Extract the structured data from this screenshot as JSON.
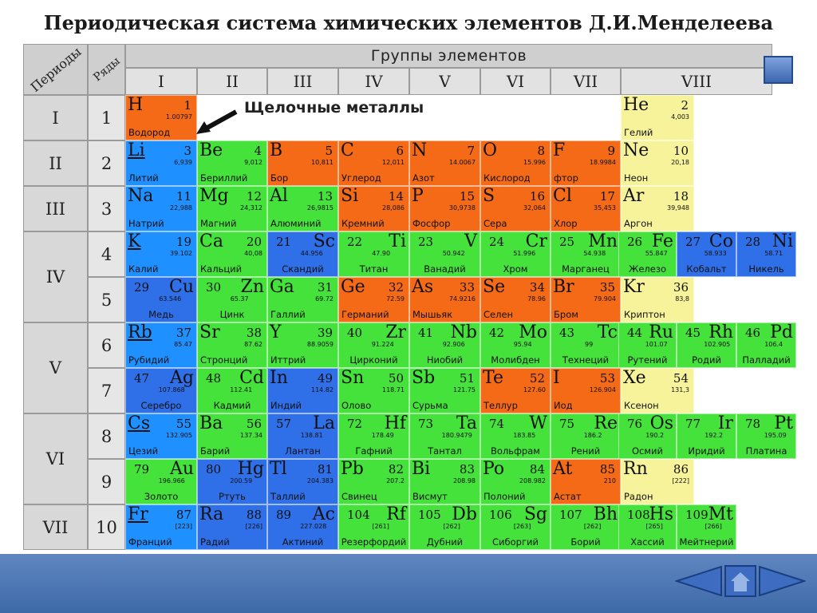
{
  "title": "Периодическая система химических элементов Д.И.Менделеева",
  "headers": {
    "periods": "Периоды",
    "rows": "Ряды",
    "groups": "Группы элементов"
  },
  "groups": [
    "I",
    "II",
    "III",
    "IV",
    "V",
    "VI",
    "VII",
    "VIII"
  ],
  "periods": [
    "I",
    "II",
    "III",
    "IV",
    "V",
    "VI",
    "VII"
  ],
  "rows": [
    "1",
    "2",
    "3",
    "4",
    "5",
    "6",
    "7",
    "8",
    "9",
    "10"
  ],
  "annotation": "Щелочные металлы",
  "colors": {
    "s": "#f26a1b",
    "p": "#f26a1b",
    "s_blue": "#1e90ff",
    "d_blue": "#2f6fe8",
    "green": "#44e23a",
    "yellow": "#f7f39a",
    "red": "#f46a17"
  },
  "elements": [
    {
      "id": "H",
      "symbol": "H",
      "number": "1",
      "mass": "1.00797",
      "name": "Водород",
      "row": 1,
      "col": 1,
      "color": "#f46a17",
      "layout": "sym-left"
    },
    {
      "id": "He",
      "symbol": "He",
      "number": "2",
      "mass": "4,003",
      "name": "Гелий",
      "row": 1,
      "col": 8,
      "color": "#f7f39a",
      "layout": "sym-left"
    },
    {
      "id": "Li",
      "symbol": "Li",
      "number": "3",
      "mass": "6,939",
      "name": "Литий",
      "row": 2,
      "col": 1,
      "color": "#1e90ff",
      "layout": "sym-left",
      "underline": true
    },
    {
      "id": "Be",
      "symbol": "Be",
      "number": "4",
      "mass": "9,012",
      "name": "Бериллий",
      "row": 2,
      "col": 2,
      "color": "#44e23a",
      "layout": "sym-left"
    },
    {
      "id": "B",
      "symbol": "B",
      "number": "5",
      "mass": "10,811",
      "name": "Бор",
      "row": 2,
      "col": 3,
      "color": "#f46a17",
      "layout": "sym-left"
    },
    {
      "id": "C",
      "symbol": "C",
      "number": "6",
      "mass": "12,011",
      "name": "Углерод",
      "row": 2,
      "col": 4,
      "color": "#f46a17",
      "layout": "sym-left"
    },
    {
      "id": "N",
      "symbol": "N",
      "number": "7",
      "mass": "14.0067",
      "name": "Азот",
      "row": 2,
      "col": 5,
      "color": "#f46a17",
      "layout": "sym-left"
    },
    {
      "id": "O",
      "symbol": "O",
      "number": "8",
      "mass": "15.996",
      "name": "Кислород",
      "row": 2,
      "col": 6,
      "color": "#f46a17",
      "layout": "sym-left"
    },
    {
      "id": "F",
      "symbol": "F",
      "number": "9",
      "mass": "18.9984",
      "name": "фтор",
      "row": 2,
      "col": 7,
      "color": "#f46a17",
      "layout": "sym-left"
    },
    {
      "id": "Ne",
      "symbol": "Ne",
      "number": "10",
      "mass": "20,18",
      "name": "Неон",
      "row": 2,
      "col": 8,
      "color": "#f7f39a",
      "layout": "sym-left"
    },
    {
      "id": "Na",
      "symbol": "Na",
      "number": "11",
      "mass": "22,988",
      "name": "Натрий",
      "row": 3,
      "col": 1,
      "color": "#1e90ff",
      "layout": "sym-left"
    },
    {
      "id": "Mg",
      "symbol": "Mg",
      "number": "12",
      "mass": "24,312",
      "name": "Магний",
      "row": 3,
      "col": 2,
      "color": "#44e23a",
      "layout": "sym-left"
    },
    {
      "id": "Al",
      "symbol": "Al",
      "number": "13",
      "mass": "26,9815",
      "name": "Алюминий",
      "row": 3,
      "col": 3,
      "color": "#44e23a",
      "layout": "sym-left"
    },
    {
      "id": "Si",
      "symbol": "Si",
      "number": "14",
      "mass": "28,086",
      "name": "Кремний",
      "row": 3,
      "col": 4,
      "color": "#f46a17",
      "layout": "sym-left"
    },
    {
      "id": "P",
      "symbol": "P",
      "number": "15",
      "mass": "30,9738",
      "name": "Фосфор",
      "row": 3,
      "col": 5,
      "color": "#f46a17",
      "layout": "sym-left"
    },
    {
      "id": "S",
      "symbol": "S",
      "number": "16",
      "mass": "32,064",
      "name": "Сера",
      "row": 3,
      "col": 6,
      "color": "#f46a17",
      "layout": "sym-left"
    },
    {
      "id": "Cl",
      "symbol": "Cl",
      "number": "17",
      "mass": "35,453",
      "name": "Хлор",
      "row": 3,
      "col": 7,
      "color": "#f46a17",
      "layout": "sym-left"
    },
    {
      "id": "Ar",
      "symbol": "Ar",
      "number": "18",
      "mass": "39,948",
      "name": "Аргон",
      "row": 3,
      "col": 8,
      "color": "#f7f39a",
      "layout": "sym-left"
    },
    {
      "id": "K",
      "symbol": "K",
      "number": "19",
      "mass": "39.102",
      "name": "Калий",
      "row": 4,
      "col": 1,
      "color": "#1e90ff",
      "layout": "sym-left",
      "underline": true
    },
    {
      "id": "Ca",
      "symbol": "Ca",
      "number": "20",
      "mass": "40,08",
      "name": "Кальций",
      "row": 4,
      "col": 2,
      "color": "#44e23a",
      "layout": "sym-left"
    },
    {
      "id": "Sc",
      "symbol": "Sc",
      "number": "21",
      "mass": "44.956",
      "name": "Скандий",
      "row": 4,
      "col": 3,
      "color": "#2f6fe8",
      "layout": "sym-right"
    },
    {
      "id": "Ti",
      "symbol": "Ti",
      "number": "22",
      "mass": "47.90",
      "name": "Титан",
      "row": 4,
      "col": 4,
      "color": "#44e23a",
      "layout": "sym-right"
    },
    {
      "id": "V",
      "symbol": "V",
      "number": "23",
      "mass": "50.942",
      "name": "Ванадий",
      "row": 4,
      "col": 5,
      "color": "#44e23a",
      "layout": "sym-right"
    },
    {
      "id": "Cr",
      "symbol": "Cr",
      "number": "24",
      "mass": "51.996",
      "name": "Хром",
      "row": 4,
      "col": 6,
      "color": "#44e23a",
      "layout": "sym-right"
    },
    {
      "id": "Mn",
      "symbol": "Mn",
      "number": "25",
      "mass": "54.938",
      "name": "Марганец",
      "row": 4,
      "col": 7,
      "color": "#44e23a",
      "layout": "sym-right"
    },
    {
      "id": "Fe",
      "symbol": "Fe",
      "number": "26",
      "mass": "55.847",
      "name": "Железо",
      "row": 4,
      "col": 8,
      "color": "#44e23a",
      "layout": "sym-right",
      "sub": 0
    },
    {
      "id": "Co",
      "symbol": "Co",
      "number": "27",
      "mass": "58.933",
      "name": "Кобальт",
      "row": 4,
      "col": 8,
      "color": "#2f6fe8",
      "layout": "sym-right",
      "sub": 1
    },
    {
      "id": "Ni",
      "symbol": "Ni",
      "number": "28",
      "mass": "58.71",
      "name": "Никель",
      "row": 4,
      "col": 8,
      "color": "#2f6fe8",
      "layout": "sym-right",
      "sub": 2
    },
    {
      "id": "Cu",
      "symbol": "Cu",
      "number": "29",
      "mass": "63.546",
      "name": "Медь",
      "row": 5,
      "col": 1,
      "color": "#2f6fe8",
      "layout": "sym-right"
    },
    {
      "id": "Zn",
      "symbol": "Zn",
      "number": "30",
      "mass": "65.37",
      "name": "Цинк",
      "row": 5,
      "col": 2,
      "color": "#44e23a",
      "layout": "sym-right"
    },
    {
      "id": "Ga",
      "symbol": "Ga",
      "number": "31",
      "mass": "69.72",
      "name": "Галлий",
      "row": 5,
      "col": 3,
      "color": "#44e23a",
      "layout": "sym-left"
    },
    {
      "id": "Ge",
      "symbol": "Ge",
      "number": "32",
      "mass": "72.59",
      "name": "Германий",
      "row": 5,
      "col": 4,
      "color": "#f46a17",
      "layout": "sym-left"
    },
    {
      "id": "As",
      "symbol": "As",
      "number": "33",
      "mass": "74.9216",
      "name": "Мышьяк",
      "row": 5,
      "col": 5,
      "color": "#f46a17",
      "layout": "sym-left"
    },
    {
      "id": "Se",
      "symbol": "Se",
      "number": "34",
      "mass": "78.96",
      "name": "Селен",
      "row": 5,
      "col": 6,
      "color": "#f46a17",
      "layout": "sym-left"
    },
    {
      "id": "Br",
      "symbol": "Br",
      "number": "35",
      "mass": "79.904",
      "name": "Бром",
      "row": 5,
      "col": 7,
      "color": "#f46a17",
      "layout": "sym-left"
    },
    {
      "id": "Kr",
      "symbol": "Kr",
      "number": "36",
      "mass": "83,8",
      "name": "Криптон",
      "row": 5,
      "col": 8,
      "color": "#f7f39a",
      "layout": "sym-left"
    },
    {
      "id": "Rb",
      "symbol": "Rb",
      "number": "37",
      "mass": "85.47",
      "name": "Рубидий",
      "row": 6,
      "col": 1,
      "color": "#1e90ff",
      "layout": "sym-left",
      "underline": true
    },
    {
      "id": "Sr",
      "symbol": "Sr",
      "number": "38",
      "mass": "87.62",
      "name": "Стронций",
      "row": 6,
      "col": 2,
      "color": "#44e23a",
      "layout": "sym-left"
    },
    {
      "id": "Y",
      "symbol": "Y",
      "number": "39",
      "mass": "88.9059",
      "name": "Иттрий",
      "row": 6,
      "col": 3,
      "color": "#44e23a",
      "layout": "sym-left"
    },
    {
      "id": "Zr",
      "symbol": "Zr",
      "number": "40",
      "mass": "91.224",
      "name": "Цирконий",
      "row": 6,
      "col": 4,
      "color": "#44e23a",
      "layout": "sym-right"
    },
    {
      "id": "Nb",
      "symbol": "Nb",
      "number": "41",
      "mass": "92.906",
      "name": "Ниобий",
      "row": 6,
      "col": 5,
      "color": "#44e23a",
      "layout": "sym-right"
    },
    {
      "id": "Mo",
      "symbol": "Mo",
      "number": "42",
      "mass": "95.94",
      "name": "Молибден",
      "row": 6,
      "col": 6,
      "color": "#44e23a",
      "layout": "sym-right"
    },
    {
      "id": "Tc",
      "symbol": "Tc",
      "number": "43",
      "mass": "99",
      "name": "Технеций",
      "row": 6,
      "col": 7,
      "color": "#44e23a",
      "layout": "sym-right"
    },
    {
      "id": "Ru",
      "symbol": "Ru",
      "number": "44",
      "mass": "101.07",
      "name": "Рутений",
      "row": 6,
      "col": 8,
      "color": "#44e23a",
      "layout": "sym-right",
      "sub": 0
    },
    {
      "id": "Rh",
      "symbol": "Rh",
      "number": "45",
      "mass": "102.905",
      "name": "Родий",
      "row": 6,
      "col": 8,
      "color": "#44e23a",
      "layout": "sym-right",
      "sub": 1
    },
    {
      "id": "Pd",
      "symbol": "Pd",
      "number": "46",
      "mass": "106.4",
      "name": "Палладий",
      "row": 6,
      "col": 8,
      "color": "#44e23a",
      "layout": "sym-right",
      "sub": 2
    },
    {
      "id": "Ag",
      "symbol": "Ag",
      "number": "47",
      "mass": "107.868",
      "name": "Серебро",
      "row": 7,
      "col": 1,
      "color": "#2f6fe8",
      "layout": "sym-right"
    },
    {
      "id": "Cd",
      "symbol": "Cd",
      "number": "48",
      "mass": "112.41",
      "name": "Кадмий",
      "row": 7,
      "col": 2,
      "color": "#44e23a",
      "layout": "sym-right"
    },
    {
      "id": "In",
      "symbol": "In",
      "number": "49",
      "mass": "114.82",
      "name": "Индий",
      "row": 7,
      "col": 3,
      "color": "#2f6fe8",
      "layout": "sym-left"
    },
    {
      "id": "Sn",
      "symbol": "Sn",
      "number": "50",
      "mass": "118.71",
      "name": "Олово",
      "row": 7,
      "col": 4,
      "color": "#44e23a",
      "layout": "sym-left"
    },
    {
      "id": "Sb",
      "symbol": "Sb",
      "number": "51",
      "mass": "121.75",
      "name": "Сурьма",
      "row": 7,
      "col": 5,
      "color": "#44e23a",
      "layout": "sym-left"
    },
    {
      "id": "Te",
      "symbol": "Te",
      "number": "52",
      "mass": "127.60",
      "name": "Теллур",
      "row": 7,
      "col": 6,
      "color": "#f46a17",
      "layout": "sym-left"
    },
    {
      "id": "I",
      "symbol": "I",
      "number": "53",
      "mass": "126.904",
      "name": "Иод",
      "row": 7,
      "col": 7,
      "color": "#f46a17",
      "layout": "sym-left"
    },
    {
      "id": "Xe",
      "symbol": "Xe",
      "number": "54",
      "mass": "131,3",
      "name": "Ксенон",
      "row": 7,
      "col": 8,
      "color": "#f7f39a",
      "layout": "sym-left"
    },
    {
      "id": "Cs",
      "symbol": "Cs",
      "number": "55",
      "mass": "132.905",
      "name": "Цезий",
      "row": 8,
      "col": 1,
      "color": "#1e90ff",
      "layout": "sym-left",
      "underline": true
    },
    {
      "id": "Ba",
      "symbol": "Ba",
      "number": "56",
      "mass": "137.34",
      "name": "Барий",
      "row": 8,
      "col": 2,
      "color": "#44e23a",
      "layout": "sym-left"
    },
    {
      "id": "La",
      "symbol": "La",
      "number": "57",
      "mass": "138.81",
      "name": "Лантан",
      "row": 8,
      "col": 3,
      "color": "#2f6fe8",
      "layout": "sym-right"
    },
    {
      "id": "Hf",
      "symbol": "Hf",
      "number": "72",
      "mass": "178.49",
      "name": "Гафний",
      "row": 8,
      "col": 4,
      "color": "#44e23a",
      "layout": "sym-right"
    },
    {
      "id": "Ta",
      "symbol": "Ta",
      "number": "73",
      "mass": "180.9479",
      "name": "Тантал",
      "row": 8,
      "col": 5,
      "color": "#44e23a",
      "layout": "sym-right"
    },
    {
      "id": "W",
      "symbol": "W",
      "number": "74",
      "mass": "183.85",
      "name": "Вольфрам",
      "row": 8,
      "col": 6,
      "color": "#44e23a",
      "layout": "sym-right"
    },
    {
      "id": "Re",
      "symbol": "Re",
      "number": "75",
      "mass": "186.2",
      "name": "Рений",
      "row": 8,
      "col": 7,
      "color": "#44e23a",
      "layout": "sym-right"
    },
    {
      "id": "Os",
      "symbol": "Os",
      "number": "76",
      "mass": "190.2",
      "name": "Осмий",
      "row": 8,
      "col": 8,
      "color": "#44e23a",
      "layout": "sym-right",
      "sub": 0
    },
    {
      "id": "Ir",
      "symbol": "Ir",
      "number": "77",
      "mass": "192.2",
      "name": "Иридий",
      "row": 8,
      "col": 8,
      "color": "#44e23a",
      "layout": "sym-right",
      "sub": 1
    },
    {
      "id": "Pt",
      "symbol": "Pt",
      "number": "78",
      "mass": "195.09",
      "name": "Платина",
      "row": 8,
      "col": 8,
      "color": "#44e23a",
      "layout": "sym-right",
      "sub": 2
    },
    {
      "id": "Au",
      "symbol": "Au",
      "number": "79",
      "mass": "196.966",
      "name": "Золото",
      "row": 9,
      "col": 1,
      "color": "#44e23a",
      "layout": "sym-right"
    },
    {
      "id": "Hg",
      "symbol": "Hg",
      "number": "80",
      "mass": "200.59",
      "name": "Ртуть",
      "row": 9,
      "col": 2,
      "color": "#2f6fe8",
      "layout": "sym-right"
    },
    {
      "id": "Tl",
      "symbol": "Tl",
      "number": "81",
      "mass": "204.383",
      "name": "Таллий",
      "row": 9,
      "col": 3,
      "color": "#2f6fe8",
      "layout": "sym-left"
    },
    {
      "id": "Pb",
      "symbol": "Pb",
      "number": "82",
      "mass": "207.2",
      "name": "Свинец",
      "row": 9,
      "col": 4,
      "color": "#44e23a",
      "layout": "sym-left"
    },
    {
      "id": "Bi",
      "symbol": "Bi",
      "number": "83",
      "mass": "208.98",
      "name": "Висмут",
      "row": 9,
      "col": 5,
      "color": "#44e23a",
      "layout": "sym-left"
    },
    {
      "id": "Po",
      "symbol": "Po",
      "number": "84",
      "mass": "208.982",
      "name": "Полоний",
      "row": 9,
      "col": 6,
      "color": "#44e23a",
      "layout": "sym-left"
    },
    {
      "id": "At",
      "symbol": "At",
      "number": "85",
      "mass": "210",
      "name": "Астат",
      "row": 9,
      "col": 7,
      "color": "#f46a17",
      "layout": "sym-left"
    },
    {
      "id": "Rn",
      "symbol": "Rn",
      "number": "86",
      "mass": "[222]",
      "name": "Радон",
      "row": 9,
      "col": 8,
      "color": "#f7f39a",
      "layout": "sym-left"
    },
    {
      "id": "Fr",
      "symbol": "Fr",
      "number": "87",
      "mass": "[223]",
      "name": "Франций",
      "row": 10,
      "col": 1,
      "color": "#1e90ff",
      "layout": "sym-left",
      "underline": true
    },
    {
      "id": "Ra",
      "symbol": "Ra",
      "number": "88",
      "mass": "[226]",
      "name": "Радий",
      "row": 10,
      "col": 2,
      "color": "#2f6fe8",
      "layout": "sym-left"
    },
    {
      "id": "Ac",
      "symbol": "Ac",
      "number": "89",
      "mass": "227.028",
      "name": "Актиний",
      "row": 10,
      "col": 3,
      "color": "#2f6fe8",
      "layout": "sym-right"
    },
    {
      "id": "Rf",
      "symbol": "Rf",
      "number": "104",
      "mass": "[261]",
      "name": "Резерфордий",
      "row": 10,
      "col": 4,
      "color": "#44e23a",
      "layout": "sym-right"
    },
    {
      "id": "Db",
      "symbol": "Db",
      "number": "105",
      "mass": "[262]",
      "name": "Дубний",
      "row": 10,
      "col": 5,
      "color": "#44e23a",
      "layout": "sym-right"
    },
    {
      "id": "Sg",
      "symbol": "Sg",
      "number": "106",
      "mass": "[263]",
      "name": "Сиборгий",
      "row": 10,
      "col": 6,
      "color": "#44e23a",
      "layout": "sym-right"
    },
    {
      "id": "Bh",
      "symbol": "Bh",
      "number": "107",
      "mass": "[262]",
      "name": "Борий",
      "row": 10,
      "col": 7,
      "color": "#44e23a",
      "layout": "sym-right"
    },
    {
      "id": "Hs",
      "symbol": "Hs",
      "number": "108",
      "mass": "[265]",
      "name": "Хассий",
      "row": 10,
      "col": 8,
      "color": "#44e23a",
      "layout": "sym-right",
      "sub": 0
    },
    {
      "id": "Mt",
      "symbol": "Mt",
      "number": "109",
      "mass": "[266]",
      "name": "Мейтнерий",
      "row": 10,
      "col": 8,
      "color": "#44e23a",
      "layout": "sym-right",
      "sub": 1
    }
  ],
  "nav": {
    "prev_icon": "arrow-left-icon",
    "home_icon": "home-icon",
    "next_icon": "arrow-right-icon"
  }
}
